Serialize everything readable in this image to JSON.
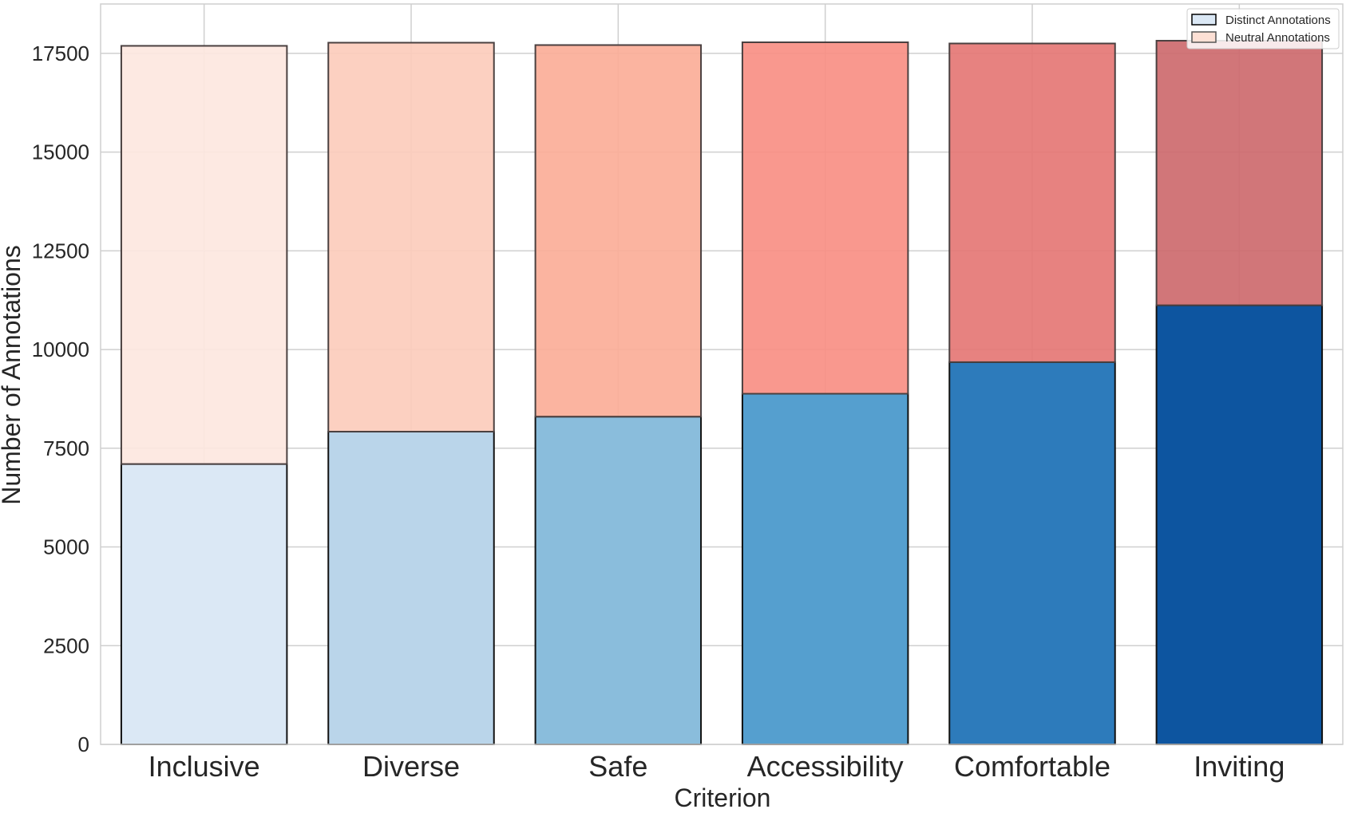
{
  "chart_data": {
    "type": "bar",
    "stacked": true,
    "title": "",
    "xlabel": "Criterion",
    "ylabel": "Number of Annotations",
    "categories": [
      "Inclusive",
      "Diverse",
      "Safe",
      "Accessibility",
      "Comfortable",
      "Inviting"
    ],
    "ylim": [
      0,
      18750
    ],
    "yticks": [
      0,
      2500,
      5000,
      7500,
      10000,
      12500,
      15000,
      17500
    ],
    "grid": true,
    "legend_position": "top-right",
    "series": [
      {
        "name": "Distinct Annotations",
        "values": [
          7100,
          7920,
          8300,
          8880,
          9680,
          11120
        ],
        "colors": [
          "#dbe8f5",
          "#bad5ea",
          "#8abddc",
          "#559fcf",
          "#2d7bbb",
          "#0d55a0"
        ],
        "legend_color": "#dbe8f5"
      },
      {
        "name": "Neutral Annotations",
        "values": [
          10590,
          9850,
          9410,
          8900,
          8070,
          6700
        ],
        "colors": [
          "#fde7df",
          "#fcccbc",
          "#fbae98",
          "#f98f84",
          "#e57775",
          "#cd6a6e"
        ],
        "legend_color": "#fde0d5"
      }
    ]
  }
}
